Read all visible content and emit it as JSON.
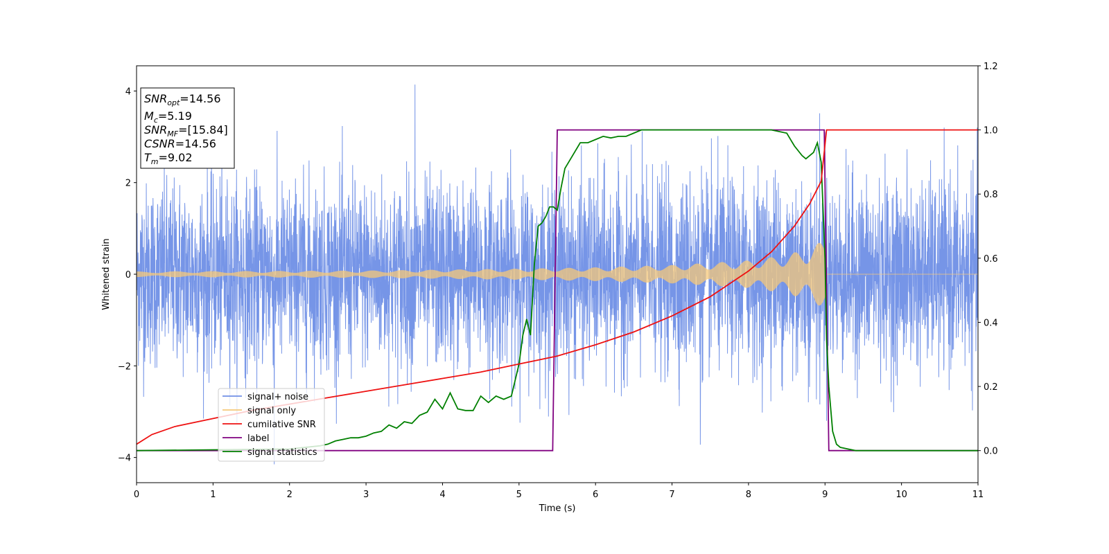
{
  "chart_data": {
    "type": "line",
    "xlabel": "Time (s)",
    "ylabel": "Whitened strain",
    "xlim": [
      0,
      11
    ],
    "ylim": [
      -4.55,
      4.55
    ],
    "y2lim": [
      -0.1,
      1.2
    ],
    "x_ticks": [
      "0",
      "1",
      "2",
      "3",
      "4",
      "5",
      "6",
      "7",
      "8",
      "9",
      "10",
      "11"
    ],
    "y_ticks": [
      "4",
      "2",
      "0",
      "−2",
      "−4"
    ],
    "y2_ticks": [
      "1.2",
      "1.0",
      "0.8",
      "0.6",
      "0.4",
      "0.2",
      "0.0"
    ],
    "grid": false,
    "legend_position": "lower-left",
    "info_box": {
      "snr_opt": "=14.56",
      "mc": "=5.19",
      "snr_mf": "=[15.84]",
      "csnr": "=14.56",
      "tm": "=9.02"
    },
    "series": [
      {
        "name": "signal+ noise",
        "color": "#6f8fe6",
        "axis": "left",
        "description_values": {
          "noise_rms": 1.0,
          "peaks": [
            [
              3.64,
              4.14
            ],
            [
              1.8,
              -4.15
            ],
            [
              7.37,
              -3.72
            ],
            [
              9.0,
              3.1
            ]
          ]
        }
      },
      {
        "name": "signal only",
        "color": "#f5c87a",
        "axis": "left",
        "envelope": {
          "x": [
            0,
            3,
            5,
            6,
            7,
            8,
            8.5,
            8.8,
            9.0,
            9.02,
            11
          ],
          "amp": [
            0.06,
            0.08,
            0.12,
            0.15,
            0.2,
            0.3,
            0.42,
            0.58,
            0.75,
            0.0,
            0.0
          ]
        }
      },
      {
        "name": "cumilative SNR",
        "color": "#ee1111",
        "axis": "right",
        "x": [
          0,
          0.2,
          0.5,
          1,
          1.5,
          2,
          2.5,
          3,
          3.5,
          4,
          4.5,
          5,
          5.5,
          6,
          6.5,
          7,
          7.5,
          8,
          8.3,
          8.6,
          8.8,
          8.95,
          9.02,
          11
        ],
        "y": [
          0.02,
          0.05,
          0.075,
          0.1,
          0.125,
          0.145,
          0.165,
          0.185,
          0.205,
          0.225,
          0.245,
          0.27,
          0.295,
          0.33,
          0.37,
          0.42,
          0.48,
          0.56,
          0.62,
          0.7,
          0.77,
          0.84,
          1.0,
          1.0
        ]
      },
      {
        "name": "label",
        "color": "#800080",
        "axis": "right",
        "x": [
          0,
          5.44,
          5.5,
          8.99,
          9.05,
          11
        ],
        "y": [
          0,
          0,
          1,
          1,
          0,
          0
        ]
      },
      {
        "name": "signal statistics",
        "color": "#008000",
        "axis": "right",
        "x": [
          0,
          2.0,
          2.2,
          2.4,
          2.5,
          2.6,
          2.7,
          2.8,
          2.9,
          3.0,
          3.1,
          3.2,
          3.3,
          3.4,
          3.5,
          3.6,
          3.7,
          3.8,
          3.9,
          4.0,
          4.1,
          4.2,
          4.3,
          4.4,
          4.5,
          4.6,
          4.7,
          4.8,
          4.9,
          5.0,
          5.05,
          5.1,
          5.15,
          5.2,
          5.25,
          5.3,
          5.35,
          5.4,
          5.45,
          5.5,
          5.55,
          5.6,
          5.65,
          5.7,
          5.8,
          5.9,
          6.0,
          6.1,
          6.2,
          6.3,
          6.4,
          6.5,
          6.6,
          6.7,
          6.8,
          7.0,
          7.5,
          8.0,
          8.3,
          8.5,
          8.6,
          8.7,
          8.75,
          8.8,
          8.85,
          8.9,
          8.95,
          9.0,
          9.02,
          9.05,
          9.1,
          9.15,
          9.2,
          9.3,
          9.4,
          10,
          11
        ],
        "y": [
          0.0,
          0.005,
          0.01,
          0.015,
          0.02,
          0.03,
          0.035,
          0.04,
          0.04,
          0.045,
          0.055,
          0.06,
          0.08,
          0.07,
          0.09,
          0.085,
          0.11,
          0.12,
          0.16,
          0.13,
          0.18,
          0.13,
          0.125,
          0.125,
          0.17,
          0.15,
          0.17,
          0.16,
          0.17,
          0.27,
          0.36,
          0.41,
          0.36,
          0.58,
          0.7,
          0.71,
          0.73,
          0.76,
          0.76,
          0.75,
          0.82,
          0.88,
          0.9,
          0.92,
          0.96,
          0.96,
          0.97,
          0.98,
          0.975,
          0.98,
          0.98,
          0.99,
          1.0,
          1.0,
          1.0,
          1.0,
          1.0,
          1.0,
          1.0,
          0.99,
          0.95,
          0.92,
          0.91,
          0.92,
          0.93,
          0.96,
          0.9,
          0.6,
          0.35,
          0.2,
          0.06,
          0.02,
          0.01,
          0.005,
          0.0,
          0.0,
          0.0
        ]
      }
    ]
  }
}
